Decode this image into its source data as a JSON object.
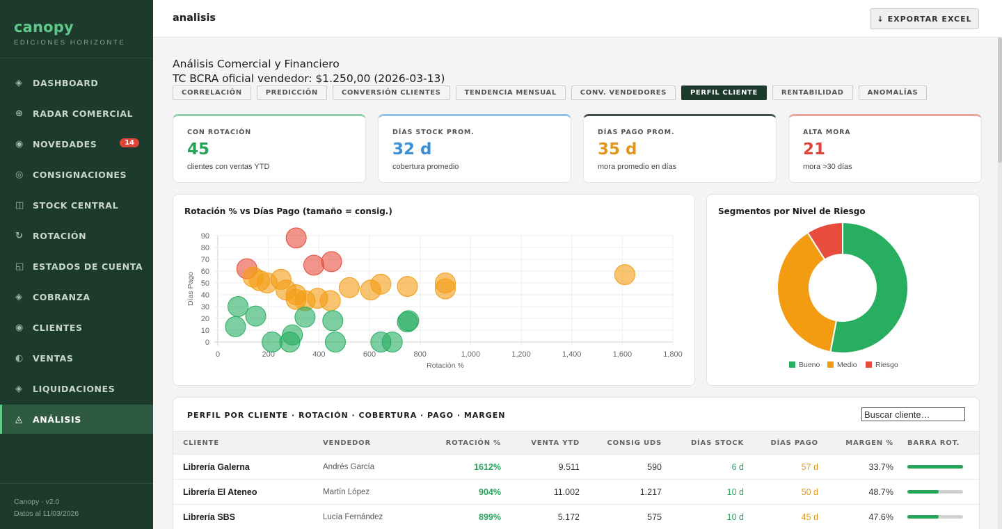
{
  "sidebar": {
    "brand": "canopy",
    "subtitle": "EDICIONES HORIZONTE",
    "items": [
      {
        "label": "DASHBOARD",
        "icon": "diamond-icon",
        "glyph": "◈"
      },
      {
        "label": "RADAR COMERCIAL",
        "icon": "radar-icon",
        "glyph": "⊕"
      },
      {
        "label": "NOVEDADES",
        "icon": "circle-icon",
        "glyph": "◉",
        "badge": "14"
      },
      {
        "label": "CONSIGNACIONES",
        "icon": "ring-icon",
        "glyph": "◎"
      },
      {
        "label": "STOCK CENTRAL",
        "icon": "grid-icon",
        "glyph": "◫"
      },
      {
        "label": "ROTACIÓN",
        "icon": "rotate-icon",
        "glyph": "↻"
      },
      {
        "label": "ESTADOS DE CUENTA",
        "icon": "ledger-icon",
        "glyph": "◱"
      },
      {
        "label": "COBRANZA",
        "icon": "diamond-icon",
        "glyph": "◈"
      },
      {
        "label": "CLIENTES",
        "icon": "circle-icon",
        "glyph": "◉"
      },
      {
        "label": "VENTAS",
        "icon": "half-circle-icon",
        "glyph": "◐"
      },
      {
        "label": "LIQUIDACIONES",
        "icon": "diamond-icon",
        "glyph": "◈"
      },
      {
        "label": "ANÁLISIS",
        "icon": "triangle-icon",
        "glyph": "◬",
        "active": true
      }
    ],
    "footer_version": "Canopy · v2.0",
    "footer_date": "Datos al 11/03/2026"
  },
  "header": {
    "title": "analisis",
    "export_label": "EXPORTAR EXCEL",
    "export_icon": "↓"
  },
  "page": {
    "title": "Análisis Comercial y Financiero",
    "subtitle": "TC BCRA oficial vendedor: $1.250,00 (2026-03-13)"
  },
  "tabs": [
    {
      "label": "CORRELACIÓN"
    },
    {
      "label": "PREDICCIÓN"
    },
    {
      "label": "CONVERSIÓN CLIENTES"
    },
    {
      "label": "TENDENCIA MENSUAL"
    },
    {
      "label": "CONV. VENDEDORES"
    },
    {
      "label": "PERFIL CLIENTE",
      "active": true
    },
    {
      "label": "RENTABILIDAD"
    },
    {
      "label": "ANOMALÍAS"
    }
  ],
  "kpis": [
    {
      "label": "CON ROTACIÓN",
      "value": "45",
      "desc": "clientes con ventas YTD",
      "color": "#27a35a",
      "top": "#8fd3a8"
    },
    {
      "label": "DÍAS STOCK PROM.",
      "value": "32 d",
      "desc": "cobertura promedio",
      "color": "#3a8fd6",
      "top": "#93c2ea"
    },
    {
      "label": "DÍAS PAGO PROM.",
      "value": "35 d",
      "desc": "mora promedio en días",
      "color": "#e0961c",
      "top": "#3f4f45"
    },
    {
      "label": "ALTA MORA",
      "value": "21",
      "desc": "mora >30 días",
      "color": "#e0453a",
      "top": "#eba39c"
    }
  ],
  "scatter": {
    "title": "Rotación % vs Días Pago (tamaño = consig.)",
    "xlabel": "Rotación %",
    "ylabel": "Días Pago",
    "xlim": [
      0,
      1800
    ],
    "ylim": [
      0,
      90
    ],
    "xticks": [
      "0",
      "200",
      "400",
      "600",
      "800",
      "1,000",
      "1,200",
      "1,400",
      "1,600",
      "1,800"
    ],
    "yticks": [
      "0",
      "10",
      "20",
      "30",
      "40",
      "50",
      "60",
      "70",
      "80",
      "90"
    ]
  },
  "donut": {
    "title": "Segmentos por Nivel de Riesgo",
    "legend": [
      {
        "label": "Bueno",
        "color": "#27ae60"
      },
      {
        "label": "Medio",
        "color": "#f39c12"
      },
      {
        "label": "Riesgo",
        "color": "#e74c3c"
      }
    ]
  },
  "chart_data": [
    {
      "type": "scatter",
      "title": "Rotación % vs Días Pago (tamaño = consig.)",
      "xlabel": "Rotación %",
      "ylabel": "Días Pago",
      "xlim": [
        0,
        1800
      ],
      "ylim": [
        0,
        90
      ],
      "grid": true,
      "series": [
        {
          "name": "Riesgo",
          "color": "#e74c3c",
          "points": [
            [
              310,
              88
            ],
            [
              380,
              65
            ],
            [
              450,
              68
            ],
            [
              115,
              62
            ]
          ]
        },
        {
          "name": "Medio",
          "color": "#f39c12",
          "points": [
            [
              140,
              55
            ],
            [
              165,
              52
            ],
            [
              195,
              50
            ],
            [
              250,
              53
            ],
            [
              270,
              44
            ],
            [
              310,
              40
            ],
            [
              310,
              36
            ],
            [
              345,
              35
            ],
            [
              395,
              37
            ],
            [
              445,
              35
            ],
            [
              520,
              46
            ],
            [
              605,
              44
            ],
            [
              645,
              49
            ],
            [
              750,
              47
            ],
            [
              900,
              50
            ],
            [
              900,
              45
            ],
            [
              1610,
              57
            ]
          ]
        },
        {
          "name": "Bueno",
          "color": "#27ae60",
          "points": [
            [
              80,
              30
            ],
            [
              150,
              22
            ],
            [
              70,
              13
            ],
            [
              215,
              0
            ],
            [
              295,
              6
            ],
            [
              285,
              0
            ],
            [
              345,
              21
            ],
            [
              455,
              18
            ],
            [
              465,
              0
            ],
            [
              645,
              0
            ],
            [
              690,
              0
            ],
            [
              750,
              17
            ],
            [
              755,
              18
            ]
          ]
        }
      ]
    },
    {
      "type": "pie",
      "title": "Segmentos por Nivel de Riesgo",
      "categories": [
        "Bueno",
        "Medio",
        "Riesgo"
      ],
      "values": [
        53,
        38,
        9
      ],
      "colors": [
        "#27ae60",
        "#f39c12",
        "#e74c3c"
      ],
      "legend": "bottom"
    }
  ],
  "table": {
    "title": "PERFIL POR CLIENTE · ROTACIÓN · COBERTURA · PAGO · MARGEN",
    "search_placeholder": "Buscar cliente…",
    "columns": [
      "CLIENTE",
      "VENDEDOR",
      "ROTACIÓN %",
      "VENTA YTD",
      "CONSIG UDS",
      "DÍAS STOCK",
      "DÍAS PAGO",
      "MARGEN %",
      "BARRA ROT."
    ],
    "rows": [
      {
        "cliente": "Librería Galerna",
        "vendedor": "Andrés García",
        "rotacion": "1612%",
        "venta": "9.511",
        "consig": "590",
        "stock": "6 d",
        "pago": "57 d",
        "margen": "33.7%",
        "bar": 1.0
      },
      {
        "cliente": "Librería El Ateneo",
        "vendedor": "Martín López",
        "rotacion": "904%",
        "venta": "11.002",
        "consig": "1.217",
        "stock": "10 d",
        "pago": "50 d",
        "margen": "48.7%",
        "bar": 0.56
      },
      {
        "cliente": "Librería SBS",
        "vendedor": "Lucía Fernández",
        "rotacion": "899%",
        "venta": "5.172",
        "consig": "575",
        "stock": "10 d",
        "pago": "45 d",
        "margen": "47.6%",
        "bar": 0.56
      }
    ]
  }
}
